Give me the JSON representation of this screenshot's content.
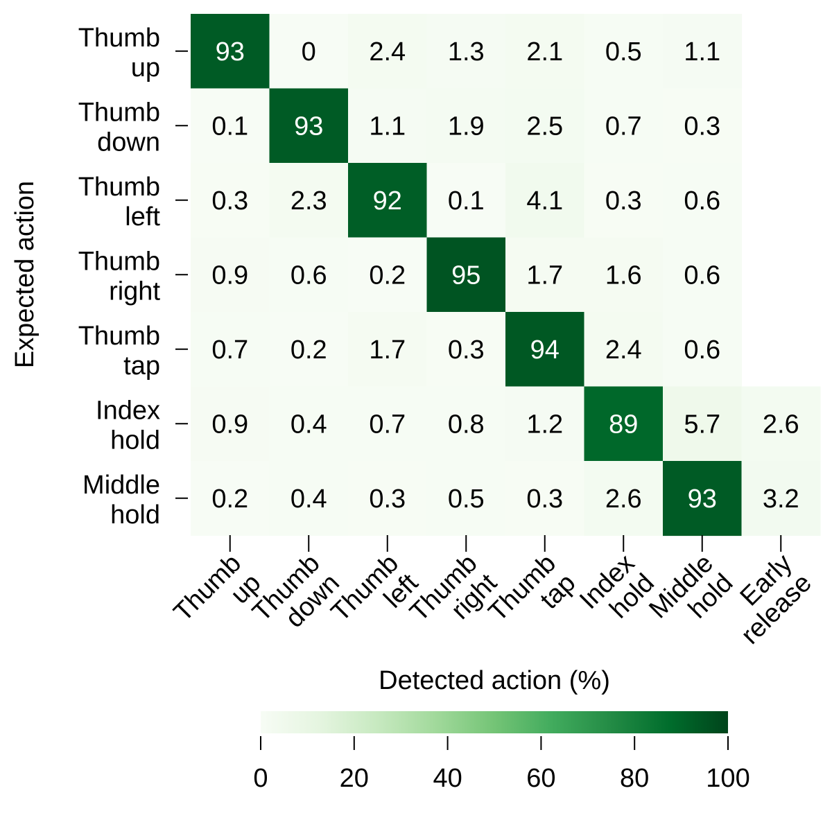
{
  "chart_data": {
    "type": "heatmap",
    "title": "",
    "xlabel": "Detected action (%)",
    "ylabel": "Expected action",
    "rows": [
      [
        "Thumb",
        "up"
      ],
      [
        "Thumb",
        "down"
      ],
      [
        "Thumb",
        "left"
      ],
      [
        "Thumb",
        "right"
      ],
      [
        "Thumb",
        "tap"
      ],
      [
        "Index",
        "hold"
      ],
      [
        "Middle",
        "hold"
      ]
    ],
    "columns": [
      [
        "Thumb",
        "up"
      ],
      [
        "Thumb",
        "down"
      ],
      [
        "Thumb",
        "left"
      ],
      [
        "Thumb",
        "right"
      ],
      [
        "Thumb",
        "tap"
      ],
      [
        "Index",
        "hold"
      ],
      [
        "Middle",
        "hold"
      ],
      [
        "Early",
        "release"
      ]
    ],
    "values": [
      [
        93,
        0,
        2.4,
        1.3,
        2.1,
        0.5,
        1.1,
        null
      ],
      [
        0.1,
        93,
        1.1,
        1.9,
        2.5,
        0.7,
        0.3,
        null
      ],
      [
        0.3,
        2.3,
        92,
        0.1,
        4.1,
        0.3,
        0.6,
        null
      ],
      [
        0.9,
        0.6,
        0.2,
        95,
        1.7,
        1.6,
        0.6,
        null
      ],
      [
        0.7,
        0.2,
        1.7,
        0.3,
        94,
        2.4,
        0.6,
        null
      ],
      [
        0.9,
        0.4,
        0.7,
        0.8,
        1.2,
        89,
        5.7,
        2.6
      ],
      [
        0.2,
        0.4,
        0.3,
        0.5,
        0.3,
        2.6,
        93,
        3.2
      ]
    ],
    "value_labels": [
      [
        "93",
        "0",
        "2.4",
        "1.3",
        "2.1",
        "0.5",
        "1.1",
        ""
      ],
      [
        "0.1",
        "93",
        "1.1",
        "1.9",
        "2.5",
        "0.7",
        "0.3",
        ""
      ],
      [
        "0.3",
        "2.3",
        "92",
        "0.1",
        "4.1",
        "0.3",
        "0.6",
        ""
      ],
      [
        "0.9",
        "0.6",
        "0.2",
        "95",
        "1.7",
        "1.6",
        "0.6",
        ""
      ],
      [
        "0.7",
        "0.2",
        "1.7",
        "0.3",
        "94",
        "2.4",
        "0.6",
        ""
      ],
      [
        "0.9",
        "0.4",
        "0.7",
        "0.8",
        "1.2",
        "89",
        "5.7",
        "2.6"
      ],
      [
        "0.2",
        "0.4",
        "0.3",
        "0.5",
        "0.3",
        "2.6",
        "93",
        "3.2"
      ]
    ],
    "colorbar": {
      "range": [
        0,
        100
      ],
      "ticks": [
        "0",
        "20",
        "40",
        "60",
        "80",
        "100"
      ],
      "tick_values": [
        0,
        20,
        40,
        60,
        80,
        100
      ],
      "colors": [
        "#f7fcf5",
        "#e5f5e0",
        "#c7e9c0",
        "#a1d99b",
        "#74c476",
        "#41ab5d",
        "#238b45",
        "#006d2c",
        "#00441b"
      ]
    },
    "text_color_dark": "#000000",
    "text_color_light": "#ffffff"
  }
}
